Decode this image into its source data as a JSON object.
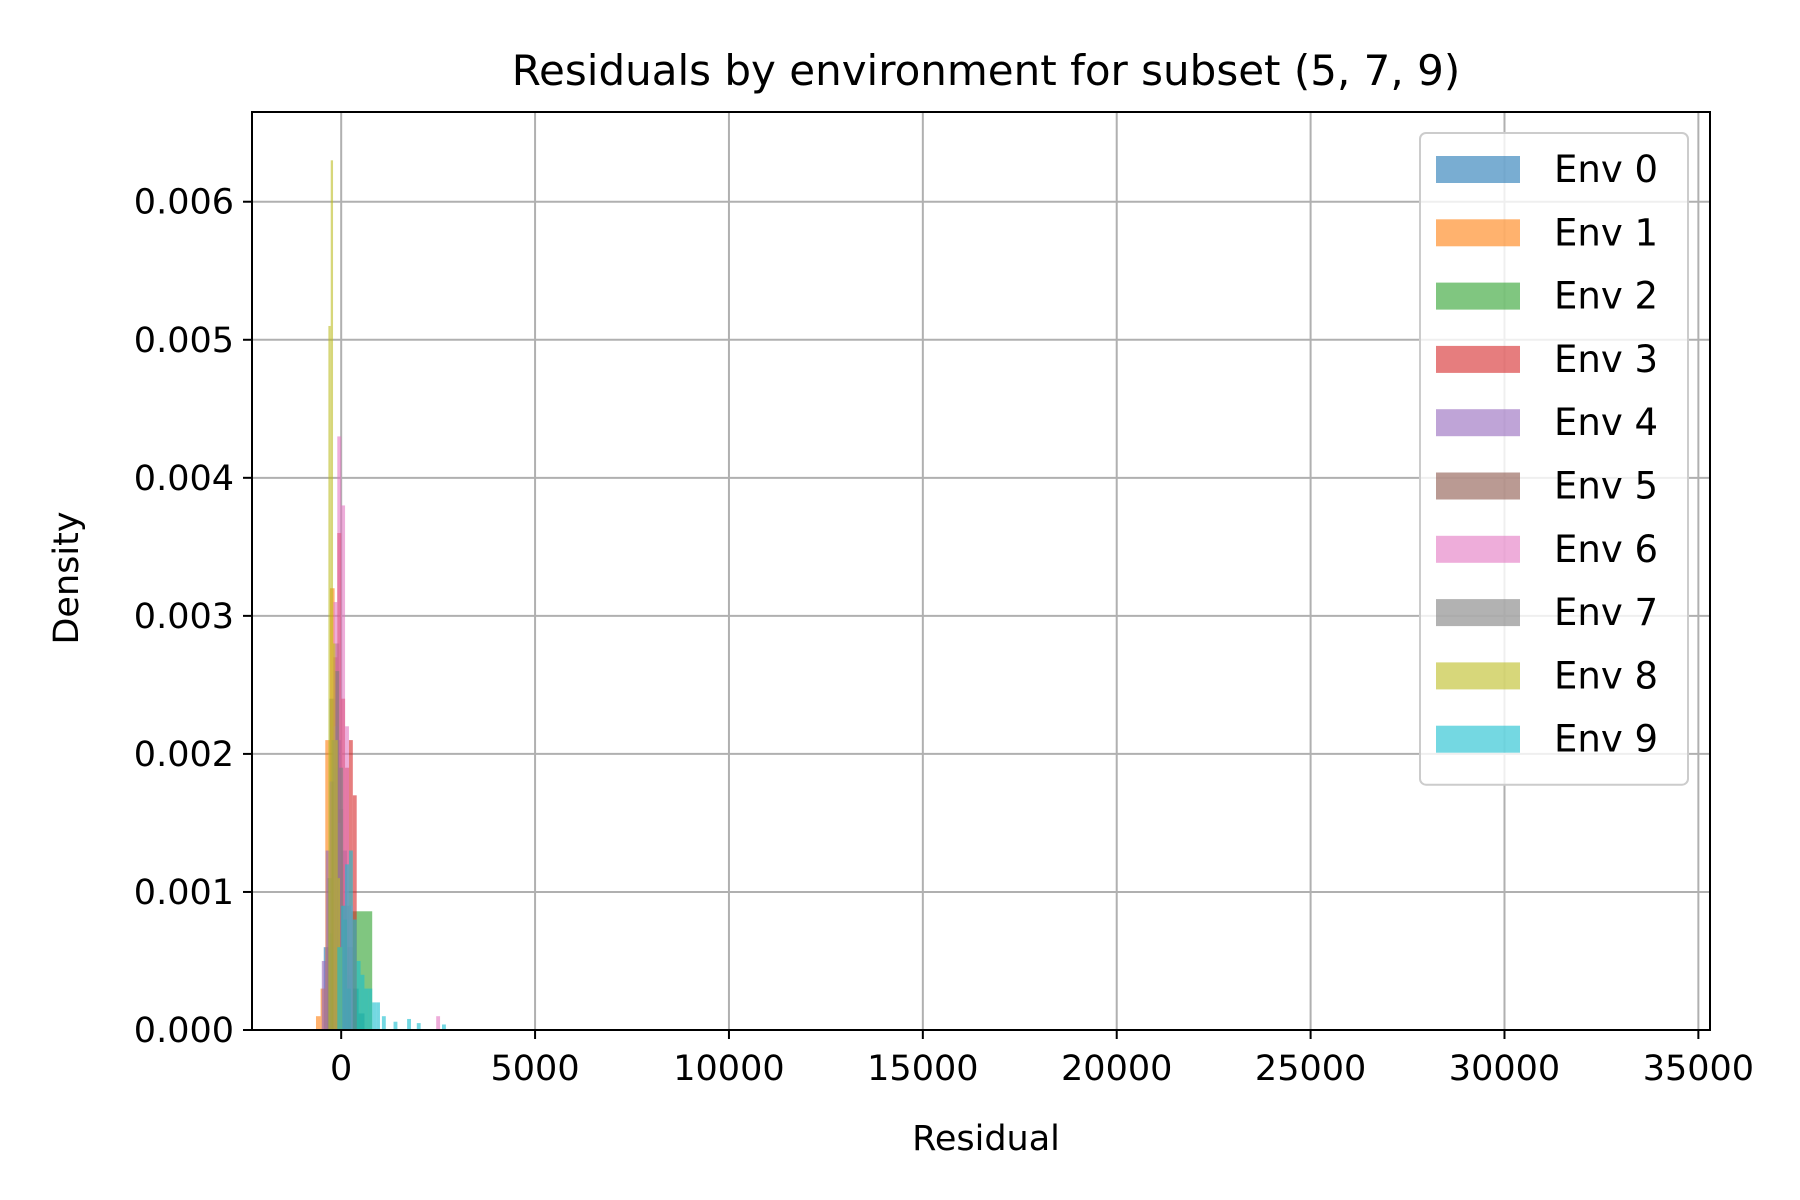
{
  "chart_data": {
    "type": "histogram",
    "title": "Residuals by environment for subset (5, 7, 9)",
    "xlabel": "Residual",
    "ylabel": "Density",
    "xlim": [
      -2300,
      35300
    ],
    "ylim": [
      0,
      0.00665
    ],
    "xticks": [
      0,
      5000,
      10000,
      15000,
      20000,
      25000,
      30000,
      35000
    ],
    "xtick_labels": [
      "0",
      "5000",
      "10000",
      "15000",
      "20000",
      "25000",
      "30000",
      "35000"
    ],
    "yticks": [
      0,
      0.001,
      0.002,
      0.003,
      0.004,
      0.005,
      0.006
    ],
    "ytick_labels": [
      "0.000",
      "0.001",
      "0.002",
      "0.003",
      "0.004",
      "0.005",
      "0.006"
    ],
    "grid": true,
    "legend_position": "top-right",
    "series": [
      {
        "name": "Env 0",
        "color": "#1f77b4",
        "bins": [
          [
            -450,
            -300,
            0.0006
          ],
          [
            -300,
            -150,
            0.0024
          ],
          [
            -150,
            0,
            0.0021
          ],
          [
            0,
            150,
            0.0013
          ],
          [
            150,
            300,
            0.0006
          ],
          [
            300,
            450,
            0.0003
          ],
          [
            450,
            600,
            0.00012
          ]
        ]
      },
      {
        "name": "Env 1",
        "color": "#ff7f0e",
        "bins": [
          [
            -650,
            -530,
            0.0001
          ],
          [
            -530,
            -410,
            0.0003
          ],
          [
            -410,
            -290,
            0.0021
          ],
          [
            -290,
            -170,
            0.0032
          ],
          [
            -170,
            -50,
            0.0026
          ],
          [
            -50,
            70,
            0.0012
          ],
          [
            70,
            190,
            0.0004
          ]
        ]
      },
      {
        "name": "Env 2",
        "color": "#2ca02c",
        "bins": [
          [
            -300,
            -200,
            0.0007
          ],
          [
            -200,
            -100,
            0.0019
          ],
          [
            -100,
            0,
            0.0016
          ],
          [
            0,
            250,
            0.0009
          ],
          [
            250,
            800,
            0.00086
          ]
        ]
      },
      {
        "name": "Env 3",
        "color": "#d62728",
        "bins": [
          [
            -200,
            -100,
            0.0027
          ],
          [
            -100,
            0,
            0.0036
          ],
          [
            0,
            100,
            0.0024
          ],
          [
            100,
            200,
            0.0019
          ],
          [
            200,
            300,
            0.0021
          ],
          [
            300,
            400,
            0.0017
          ]
        ]
      },
      {
        "name": "Env 4",
        "color": "#9467bd",
        "bins": [
          [
            -500,
            -400,
            0.0005
          ],
          [
            -400,
            -300,
            0.0013
          ],
          [
            -300,
            -200,
            0.0018
          ],
          [
            -200,
            -100,
            0.0022
          ],
          [
            -100,
            0,
            0.0015
          ],
          [
            0,
            100,
            0.0008
          ],
          [
            100,
            200,
            0.0003
          ]
        ]
      },
      {
        "name": "Env 5",
        "color": "#8c564b",
        "bins": [
          [
            -250,
            -150,
            0.0018
          ],
          [
            -150,
            -50,
            0.0028
          ],
          [
            -50,
            50,
            0.0016
          ],
          [
            50,
            150,
            0.0009
          ],
          [
            150,
            250,
            0.0004
          ]
        ]
      },
      {
        "name": "Env 6",
        "color": "#e377c2",
        "bins": [
          [
            -200,
            -100,
            0.0031
          ],
          [
            -100,
            0,
            0.0043
          ],
          [
            0,
            100,
            0.0038
          ],
          [
            100,
            200,
            0.0022
          ],
          [
            200,
            300,
            0.0009
          ],
          [
            2450,
            2550,
            0.0001
          ]
        ]
      },
      {
        "name": "Env 7",
        "color": "#7f7f7f",
        "bins": [
          [
            -350,
            -250,
            0.0011
          ],
          [
            -250,
            -150,
            0.0021
          ],
          [
            -150,
            -50,
            0.0026
          ],
          [
            -50,
            50,
            0.0019
          ],
          [
            50,
            150,
            0.0008
          ],
          [
            150,
            250,
            0.0003
          ]
        ]
      },
      {
        "name": "Env 8",
        "color": "#bcbd22",
        "bins": [
          [
            -330,
            -270,
            0.0051
          ],
          [
            -270,
            -210,
            0.0063
          ],
          [
            -210,
            -150,
            0.0028
          ],
          [
            -150,
            -90,
            0.0021
          ],
          [
            -90,
            -30,
            0.0011
          ],
          [
            -30,
            30,
            0.0006
          ]
        ]
      },
      {
        "name": "Env 9",
        "color": "#17becf",
        "bins": [
          [
            -100,
            0,
            0.0006
          ],
          [
            0,
            100,
            0.0009
          ],
          [
            100,
            200,
            0.0012
          ],
          [
            200,
            300,
            0.0013
          ],
          [
            300,
            400,
            0.0008
          ],
          [
            400,
            500,
            0.0005
          ],
          [
            500,
            600,
            0.0004
          ],
          [
            600,
            700,
            0.0003
          ],
          [
            700,
            800,
            0.0003
          ],
          [
            800,
            900,
            0.0002
          ],
          [
            900,
            1000,
            0.0002
          ],
          [
            1050,
            1150,
            0.0001
          ],
          [
            1350,
            1450,
            6e-05
          ],
          [
            1700,
            1800,
            8e-05
          ],
          [
            1950,
            2050,
            5e-05
          ],
          [
            2600,
            2700,
            4e-05
          ]
        ]
      }
    ]
  }
}
